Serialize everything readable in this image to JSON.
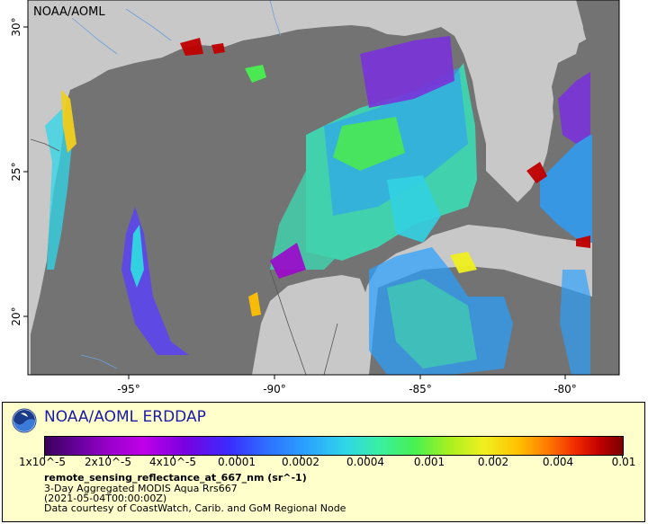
{
  "map": {
    "credit_label": "NOAA/AOML",
    "lon_ticks": [
      "-95°",
      "-90°",
      "-85°",
      "-80°"
    ],
    "lat_ticks": [
      "30°",
      "25°",
      "20°"
    ],
    "colors": {
      "land": "#c8c8c8",
      "ocean_no_data": "#737373",
      "water_line": "#6f9fd8"
    }
  },
  "legend": {
    "title": "NOAA/AOML ERDDAP",
    "colorbar_ticks": [
      "1x10^-5",
      "2x10^-5",
      "4x10^-5",
      "0.0001",
      "0.0002",
      "0.0004",
      "0.001",
      "0.002",
      "0.004",
      "0.01"
    ],
    "variable": "remote_sensing_reflectance_at_667_nm (sr^-1)",
    "dataset": "3-Day Aggregated MODIS Aqua Rrs667",
    "time": "(2021-05-04T00:00:00Z)",
    "credit": "Data courtesy of CoastWatch, Carib. and GoM Regional Node"
  }
}
